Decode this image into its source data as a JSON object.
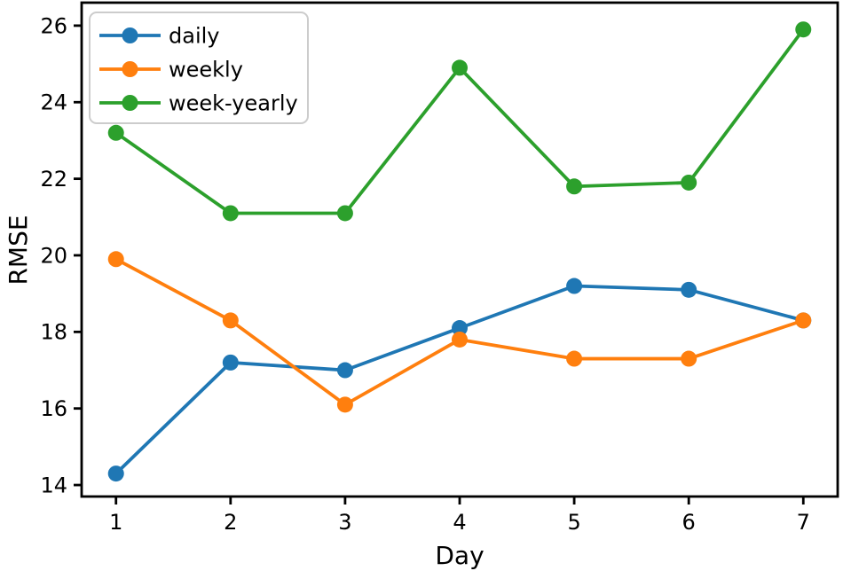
{
  "figure": {
    "background": "#ffffff",
    "spine_color": "#000000",
    "text_color": "#000000",
    "legend_border_color": "#cccccc",
    "legend_background": "#ffffff"
  },
  "chart_data": {
    "type": "line",
    "title": "",
    "xlabel": "Day",
    "ylabel": "RMSE",
    "x": [
      1,
      2,
      3,
      4,
      5,
      6,
      7
    ],
    "series": [
      {
        "name": "daily",
        "color": "#1f77b4",
        "marker": "circle",
        "values": [
          14.3,
          17.2,
          17.0,
          18.1,
          19.2,
          19.1,
          18.3
        ]
      },
      {
        "name": "weekly",
        "color": "#ff7f0e",
        "marker": "circle",
        "values": [
          19.9,
          18.3,
          16.1,
          17.8,
          17.3,
          17.3,
          18.3
        ]
      },
      {
        "name": "week-yearly",
        "color": "#2ca02c",
        "marker": "circle",
        "values": [
          23.2,
          21.1,
          21.1,
          24.9,
          21.8,
          21.9,
          25.9
        ]
      }
    ],
    "xticks": [
      1,
      2,
      3,
      4,
      5,
      6,
      7
    ],
    "yticks": [
      14,
      16,
      18,
      20,
      22,
      24,
      26
    ],
    "xlim": [
      0.7,
      7.3
    ],
    "ylim": [
      13.7,
      26.6
    ],
    "grid": false,
    "legend": {
      "location": "upper-left",
      "entries": [
        "daily",
        "weekly",
        "week-yearly"
      ]
    }
  }
}
